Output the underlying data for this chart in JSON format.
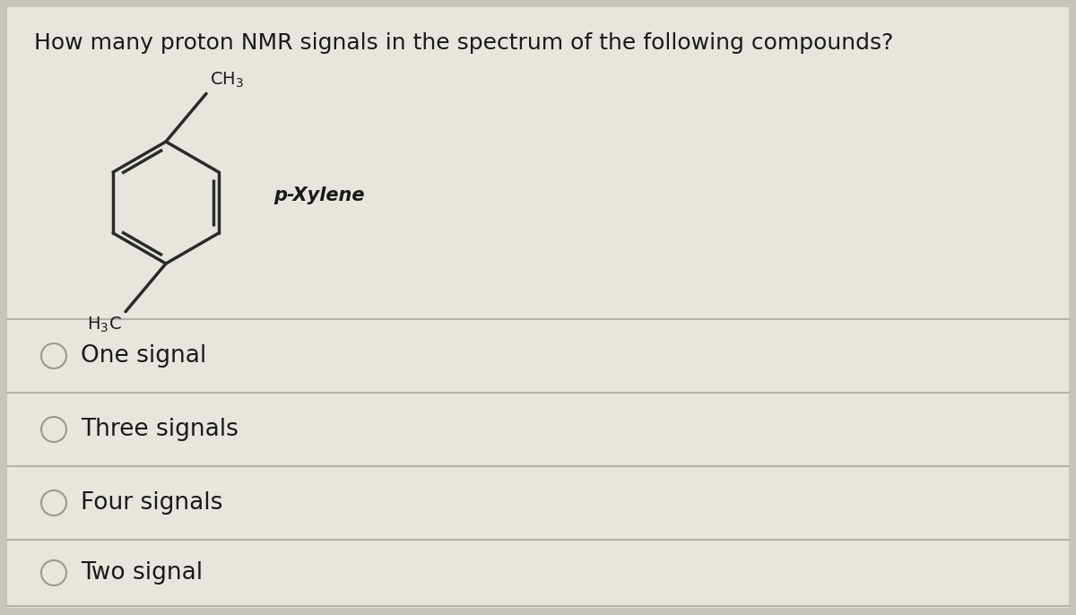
{
  "title": "How many proton NMR signals in the spectrum of the following compounds?",
  "compound_name": "p-Xylene",
  "options": [
    "One signal",
    "Three signals",
    "Four signals",
    "Two signal"
  ],
  "bg_color": "#c8c4bc",
  "panel_color": "#e8e5df",
  "title_fontsize": 18,
  "option_fontsize": 19,
  "title_color": "#1a1a1a",
  "option_color": "#1a1a1a",
  "line_color": "#b5b0a8",
  "radio_color": "#999990",
  "bond_color": "#2a2a2a"
}
